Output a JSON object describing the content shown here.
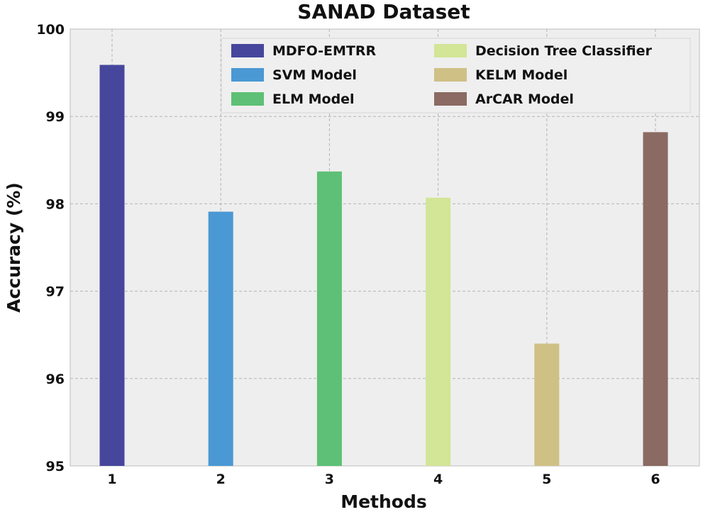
{
  "chart_data": {
    "type": "bar",
    "title": "SANAD Dataset",
    "xlabel": "Methods",
    "ylabel": "Accuracy (%)",
    "categories": [
      "1",
      "2",
      "3",
      "4",
      "5",
      "6"
    ],
    "ylim": [
      95,
      100
    ],
    "yticks": [
      95,
      96,
      97,
      98,
      99,
      100
    ],
    "grid": true,
    "legend_position": "top",
    "series": [
      {
        "name": "MDFO-EMTRR",
        "x": 1,
        "value": 99.59,
        "color": "#46479c"
      },
      {
        "name": "SVM Model",
        "x": 2,
        "value": 97.91,
        "color": "#4a98d4"
      },
      {
        "name": "ELM Model",
        "x": 3,
        "value": 98.37,
        "color": "#5ec076"
      },
      {
        "name": "Decision Tree Classifier",
        "x": 4,
        "value": 98.07,
        "color": "#d3e596"
      },
      {
        "name": "KELM Model",
        "x": 5,
        "value": 96.4,
        "color": "#cfc086"
      },
      {
        "name": "ArCAR Model",
        "x": 6,
        "value": 98.82,
        "color": "#8a6a62"
      }
    ]
  }
}
